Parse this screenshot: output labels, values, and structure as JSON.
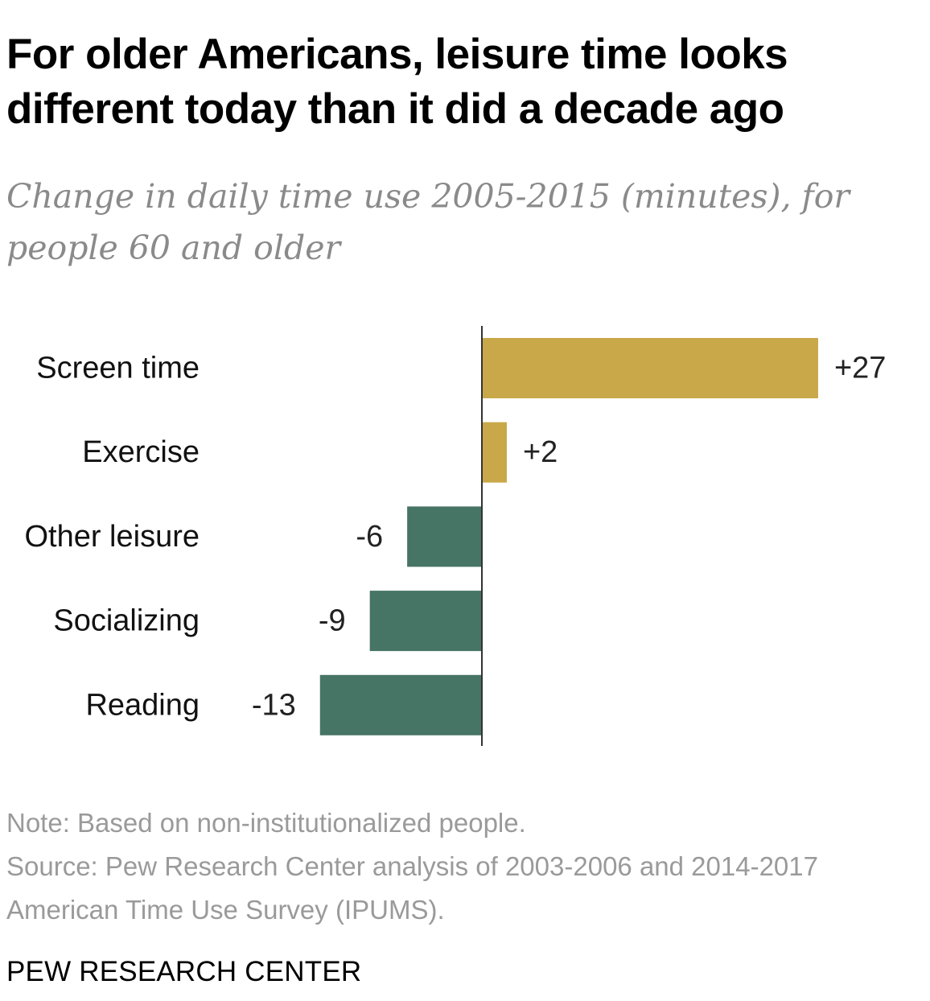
{
  "chart_data": {
    "type": "bar",
    "orientation": "horizontal",
    "title": "For older Americans, leisure time looks different today than it did a decade ago",
    "subtitle": "Change in daily time use 2005-2015 (minutes), for people 60 and older",
    "categories": [
      "Screen time",
      "Exercise",
      "Other leisure",
      "Socializing",
      "Reading"
    ],
    "values": [
      27,
      2,
      -6,
      -9,
      -13
    ],
    "data_labels": [
      "+27",
      "+2",
      "-6",
      "-9",
      "-13"
    ],
    "colors": {
      "positive": "#C9A84A",
      "negative": "#467465",
      "axis": "#333333"
    },
    "xlim": [
      -13,
      27
    ],
    "grid": false,
    "legend": "none"
  },
  "footer": {
    "note": "Note: Based on non-institutionalized people.",
    "source": "Source: Pew Research Center analysis of 2003-2006 and 2014-2017 American Time Use Survey (IPUMS)."
  },
  "brand": "PEW RESEARCH CENTER"
}
